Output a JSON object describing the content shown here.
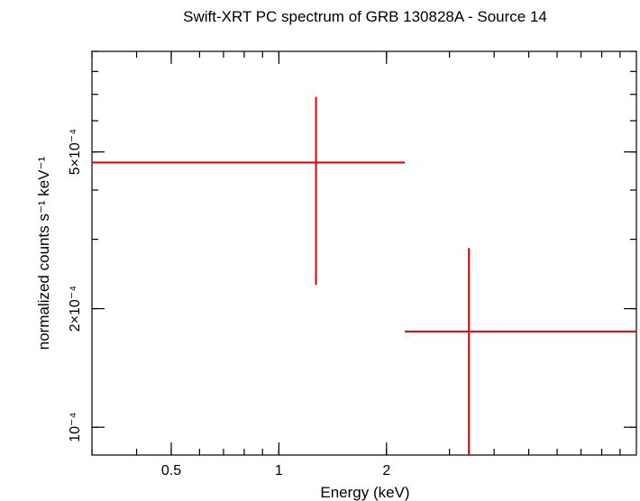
{
  "chart_data": {
    "type": "scatter",
    "title": "Swift-XRT PC spectrum of GRB 130828A - Source 14",
    "xlabel": "Energy (keV)",
    "ylabel": "normalized counts s⁻¹ keV⁻¹",
    "x_scale": "log",
    "y_scale": "log",
    "xlim": [
      0.3,
      10
    ],
    "ylim": [
      8.5e-05,
      0.0009
    ],
    "x_ticks": [
      {
        "value": 0.5,
        "label": "0.5"
      },
      {
        "value": 1,
        "label": "1"
      },
      {
        "value": 2,
        "label": "2"
      }
    ],
    "y_ticks": [
      {
        "value": 0.0001,
        "label": "10⁻⁴"
      },
      {
        "value": 0.0002,
        "label": "2×10⁻⁴"
      },
      {
        "value": 0.0005,
        "label": "5×10⁻⁴"
      }
    ],
    "series": [
      {
        "color": "#e00000",
        "points": [
          {
            "x": 1.27,
            "x_low": 0.3,
            "x_high": 2.25,
            "y": 0.00047,
            "y_low": 0.00023,
            "y_high": 0.00069
          },
          {
            "x": 3.4,
            "x_low": 2.25,
            "x_high": 10,
            "y": 0.000175,
            "y_low": 8.5e-05,
            "y_high": 0.000285
          }
        ]
      }
    ]
  }
}
